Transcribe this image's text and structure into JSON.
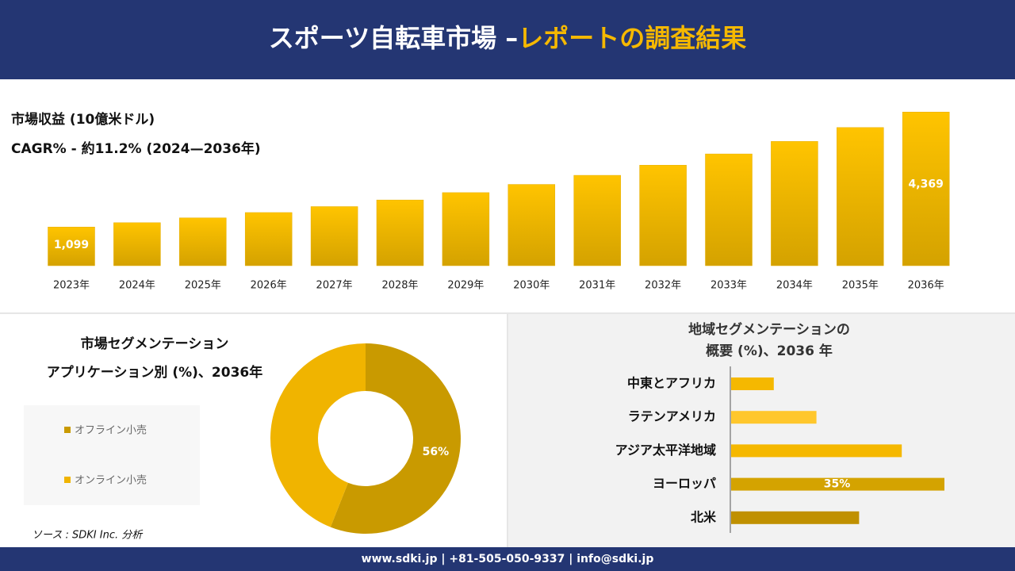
{
  "header": {
    "title_main": "スポーツ自転車市場 –",
    "title_accent": "レポートの調査結果"
  },
  "chart_data": [
    {
      "type": "bar",
      "subtitle": "市場収益 (10億米ドル)",
      "note": "CAGR% - 約11.2% (2024—2036年)",
      "categories": [
        "2023年",
        "2024年",
        "2025年",
        "2026年",
        "2027年",
        "2028年",
        "2029年",
        "2030年",
        "2031年",
        "2032年",
        "2033年",
        "2034年",
        "2035年",
        "2036年"
      ],
      "values": [
        1099,
        1222,
        1359,
        1511,
        1680,
        1868,
        2077,
        2310,
        2569,
        2857,
        3177,
        3533,
        3928,
        4369
      ],
      "value_labels": [
        "1,099",
        null,
        null,
        null,
        null,
        null,
        null,
        null,
        null,
        null,
        null,
        null,
        null,
        "4,369"
      ],
      "color": "#e6ad00",
      "ylim": [
        0,
        4600
      ]
    },
    {
      "type": "donut",
      "title_lines": [
        "市場セグメンテーション",
        "アプリケーション別 (%)、2036年"
      ],
      "categories": [
        "オフライン小売",
        "オンライン小売"
      ],
      "values": [
        56,
        44
      ],
      "value_labels": [
        "56%",
        null
      ],
      "colors": [
        "#c99a00",
        "#f0b400"
      ]
    },
    {
      "type": "hbar",
      "title_lines": [
        "地域セグメンテーションの",
        "概要 (%)、2036 年"
      ],
      "categories": [
        "中東とアフリカ",
        "ラテンアメリカ",
        "アジア太平洋地域",
        "ヨーロッパ",
        "北米"
      ],
      "values": [
        7,
        14,
        28,
        35,
        21
      ],
      "value_labels": [
        null,
        null,
        null,
        "35%",
        null
      ],
      "colors": [
        "#f5b800",
        "#ffc72c",
        "#f5b800",
        "#d4a300",
        "#c09000"
      ],
      "xlim": [
        0,
        35
      ]
    }
  ],
  "source": "ソース : SDKI Inc. 分析",
  "footer": "www.sdki.jp | +81-505-050-9337 | info@sdki.jp"
}
